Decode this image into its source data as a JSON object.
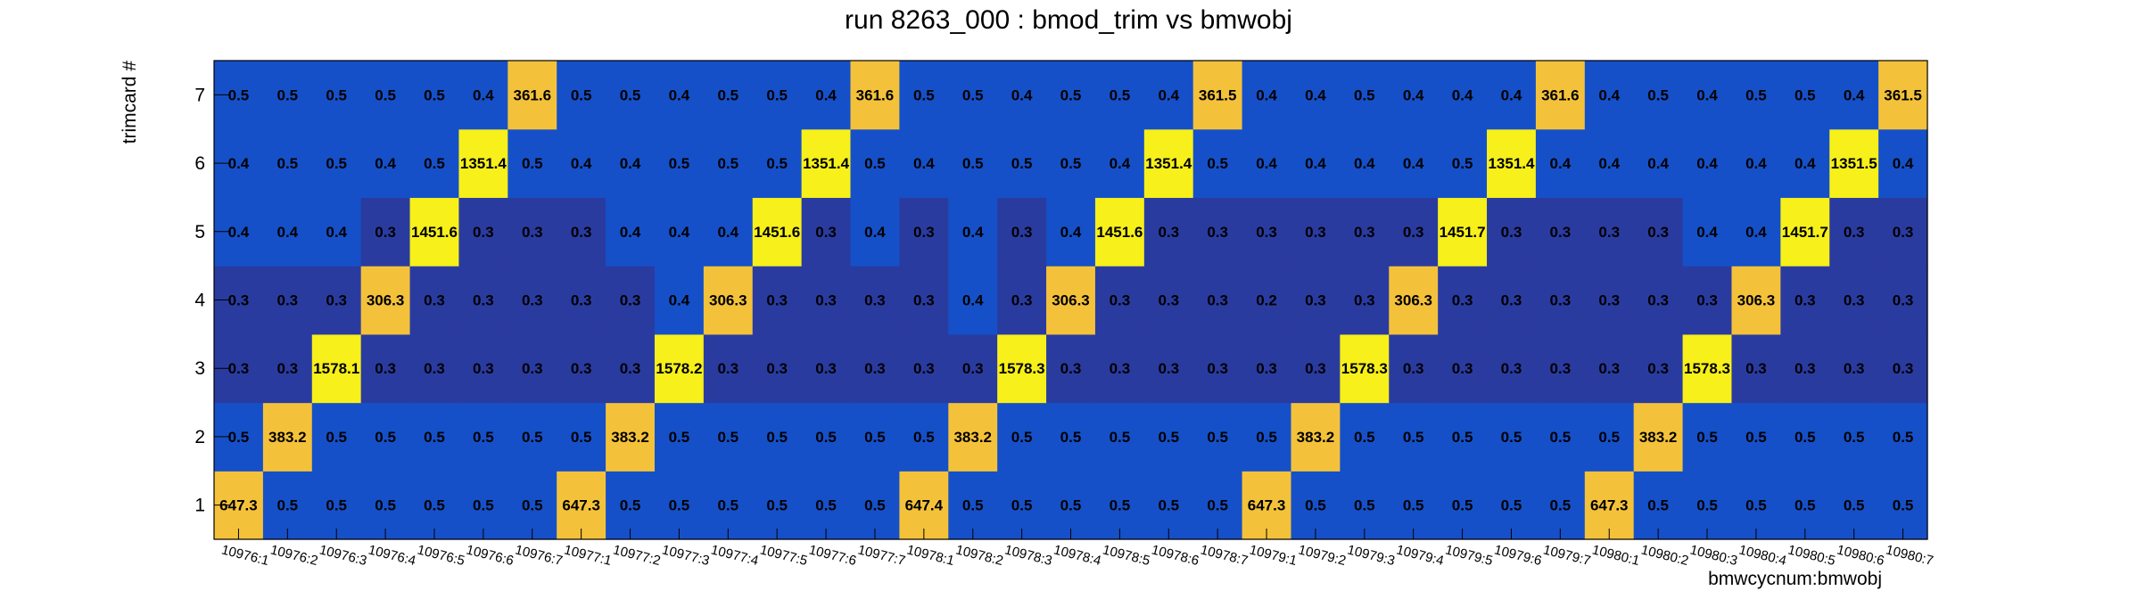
{
  "chart_data": {
    "type": "heatmap",
    "title": "run 8263_000 : bmod_trim vs bmwobj",
    "xlabel": "bmwcycnum:bmwobj",
    "ylabel": "trimcard #",
    "x_categories": [
      "10976:1",
      "10976:2",
      "10976:3",
      "10976:4",
      "10976:5",
      "10976:6",
      "10976:7",
      "10977:1",
      "10977:2",
      "10977:3",
      "10977:4",
      "10977:5",
      "10977:6",
      "10977:7",
      "10978:1",
      "10978:2",
      "10978:3",
      "10978:4",
      "10978:5",
      "10978:6",
      "10978:7",
      "10979:1",
      "10979:2",
      "10979:3",
      "10979:4",
      "10979:5",
      "10979:6",
      "10979:7",
      "10980:1",
      "10980:2",
      "10980:3",
      "10980:4",
      "10980:5",
      "10980:6",
      "10980:7"
    ],
    "y_categories": [
      "1",
      "2",
      "3",
      "4",
      "5",
      "6",
      "7"
    ],
    "values": [
      [
        "647.3",
        "0.5",
        "0.5",
        "0.5",
        "0.5",
        "0.5",
        "0.5",
        "647.3",
        "0.5",
        "0.5",
        "0.5",
        "0.5",
        "0.5",
        "0.5",
        "647.4",
        "0.5",
        "0.5",
        "0.5",
        "0.5",
        "0.5",
        "0.5",
        "647.3",
        "0.5",
        "0.5",
        "0.5",
        "0.5",
        "0.5",
        "0.5",
        "647.3",
        "0.5",
        "0.5",
        "0.5",
        "0.5",
        "0.5",
        "0.5"
      ],
      [
        "0.5",
        "383.2",
        "0.5",
        "0.5",
        "0.5",
        "0.5",
        "0.5",
        "0.5",
        "383.2",
        "0.5",
        "0.5",
        "0.5",
        "0.5",
        "0.5",
        "0.5",
        "383.2",
        "0.5",
        "0.5",
        "0.5",
        "0.5",
        "0.5",
        "0.5",
        "383.2",
        "0.5",
        "0.5",
        "0.5",
        "0.5",
        "0.5",
        "0.5",
        "383.2",
        "0.5",
        "0.5",
        "0.5",
        "0.5",
        "0.5"
      ],
      [
        "0.3",
        "0.3",
        "1578.1",
        "0.3",
        "0.3",
        "0.3",
        "0.3",
        "0.3",
        "0.3",
        "1578.2",
        "0.3",
        "0.3",
        "0.3",
        "0.3",
        "0.3",
        "0.3",
        "1578.3",
        "0.3",
        "0.3",
        "0.3",
        "0.3",
        "0.3",
        "0.3",
        "1578.3",
        "0.3",
        "0.3",
        "0.3",
        "0.3",
        "0.3",
        "0.3",
        "1578.3",
        "0.3",
        "0.3",
        "0.3",
        "0.3"
      ],
      [
        "0.3",
        "0.3",
        "0.3",
        "306.3",
        "0.3",
        "0.3",
        "0.3",
        "0.3",
        "0.3",
        "0.4",
        "306.3",
        "0.3",
        "0.3",
        "0.3",
        "0.3",
        "0.4",
        "0.3",
        "306.3",
        "0.3",
        "0.3",
        "0.3",
        "0.2",
        "0.3",
        "0.3",
        "306.3",
        "0.3",
        "0.3",
        "0.3",
        "0.3",
        "0.3",
        "0.3",
        "306.3",
        "0.3",
        "0.3",
        "0.3"
      ],
      [
        "0.4",
        "0.4",
        "0.4",
        "0.3",
        "1451.6",
        "0.3",
        "0.3",
        "0.3",
        "0.4",
        "0.4",
        "0.4",
        "1451.6",
        "0.3",
        "0.4",
        "0.3",
        "0.4",
        "0.3",
        "0.4",
        "1451.6",
        "0.3",
        "0.3",
        "0.3",
        "0.3",
        "0.3",
        "0.3",
        "1451.7",
        "0.3",
        "0.3",
        "0.3",
        "0.3",
        "0.4",
        "0.4",
        "1451.7",
        "0.3",
        "0.3"
      ],
      [
        "0.4",
        "0.5",
        "0.5",
        "0.4",
        "0.5",
        "1351.4",
        "0.5",
        "0.4",
        "0.4",
        "0.5",
        "0.5",
        "0.5",
        "1351.4",
        "0.5",
        "0.4",
        "0.5",
        "0.5",
        "0.5",
        "0.4",
        "1351.4",
        "0.5",
        "0.4",
        "0.4",
        "0.4",
        "0.4",
        "0.5",
        "1351.4",
        "0.4",
        "0.4",
        "0.4",
        "0.4",
        "0.4",
        "0.4",
        "1351.5",
        "0.4"
      ],
      [
        "0.5",
        "0.5",
        "0.5",
        "0.5",
        "0.5",
        "0.4",
        "361.6",
        "0.5",
        "0.5",
        "0.4",
        "0.5",
        "0.5",
        "0.4",
        "361.6",
        "0.5",
        "0.5",
        "0.4",
        "0.5",
        "0.5",
        "0.4",
        "361.5",
        "0.4",
        "0.4",
        "0.5",
        "0.4",
        "0.4",
        "0.4",
        "361.6",
        "0.4",
        "0.5",
        "0.4",
        "0.5",
        "0.5",
        "0.4",
        "361.5"
      ]
    ],
    "colors": {
      "low_dark": "#2a3ba0",
      "low": "#1650c8",
      "mid": "#f4c23a",
      "high": "#f7f01a"
    },
    "grid": false,
    "legend": "none"
  }
}
